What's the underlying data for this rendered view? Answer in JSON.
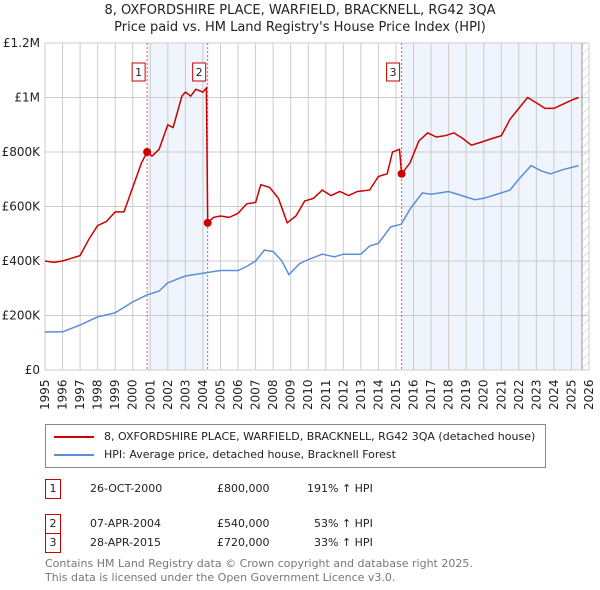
{
  "title": "8, OXFORDSHIRE PLACE, WARFIELD, BRACKNELL, RG42 3QA",
  "subtitle": "Price paid vs. HM Land Registry's House Price Index (HPI)",
  "chart_data": {
    "type": "line",
    "xlim": [
      1995,
      2026
    ],
    "ylim": [
      0,
      1200000
    ],
    "yticks": [
      {
        "v": 0,
        "label": "£0"
      },
      {
        "v": 200000,
        "label": "£200K"
      },
      {
        "v": 400000,
        "label": "£400K"
      },
      {
        "v": 600000,
        "label": "£600K"
      },
      {
        "v": 800000,
        "label": "£800K"
      },
      {
        "v": 1000000,
        "label": "£1M"
      },
      {
        "v": 1200000,
        "label": "£1.2M"
      }
    ],
    "xticks": [
      "1995",
      "1996",
      "1997",
      "1998",
      "1999",
      "2000",
      "2001",
      "2002",
      "2003",
      "2004",
      "2005",
      "2006",
      "2007",
      "2008",
      "2009",
      "2010",
      "2011",
      "2012",
      "2013",
      "2014",
      "2015",
      "2016",
      "2017",
      "2018",
      "2019",
      "2020",
      "2021",
      "2022",
      "2023",
      "2024",
      "2025",
      "2026"
    ],
    "grid": true,
    "shaded_ranges": [
      [
        2000.82,
        2004.27
      ],
      [
        2015.32,
        2025.6
      ]
    ],
    "future_hatch_from": 2025.6,
    "series": [
      {
        "name": "8, OXFORDSHIRE PLACE, WARFIELD, BRACKNELL, RG42 3QA (detached house)",
        "color": "#cc0000",
        "x": [
          1995,
          1995.5,
          1996,
          1996.5,
          1997,
          1997.5,
          1998,
          1998.5,
          1999,
          1999.5,
          2000,
          2000.5,
          2000.82,
          2001.1,
          2001.5,
          2002,
          2002.3,
          2002.8,
          2003,
          2003.3,
          2003.6,
          2004.0,
          2004.2,
          2004.27,
          2004.6,
          2005,
          2005.5,
          2006,
          2006.5,
          2007,
          2007.3,
          2007.8,
          2008.3,
          2008.8,
          2009.3,
          2009.8,
          2010.3,
          2010.8,
          2011.3,
          2011.8,
          2012.3,
          2012.8,
          2013.5,
          2014,
          2014.5,
          2014.8,
          2015.2,
          2015.32,
          2015.8,
          2016.3,
          2016.8,
          2017.3,
          2017.8,
          2018.3,
          2018.8,
          2019.3,
          2019.8,
          2020.5,
          2021,
          2021.5,
          2022,
          2022.5,
          2023,
          2023.5,
          2024,
          2024.5,
          2025,
          2025.4
        ],
        "y": [
          400000,
          395000,
          400000,
          410000,
          420000,
          480000,
          530000,
          545000,
          580000,
          580000,
          670000,
          760000,
          800000,
          785000,
          810000,
          900000,
          890000,
          1005000,
          1020000,
          1005000,
          1030000,
          1020000,
          1035000,
          540000,
          560000,
          565000,
          560000,
          575000,
          610000,
          615000,
          680000,
          670000,
          630000,
          540000,
          565000,
          620000,
          630000,
          660000,
          640000,
          655000,
          640000,
          655000,
          660000,
          710000,
          720000,
          800000,
          810000,
          720000,
          760000,
          840000,
          870000,
          855000,
          860000,
          870000,
          850000,
          825000,
          835000,
          850000,
          860000,
          920000,
          960000,
          1000000,
          980000,
          960000,
          960000,
          975000,
          990000,
          1000000
        ]
      },
      {
        "name": "HPI: Average price, detached house, Bracknell Forest",
        "color": "#5b8fd6",
        "x": [
          1995,
          1996,
          1997,
          1998,
          1999,
          2000,
          2000.8,
          2001.5,
          2002,
          2003,
          2004,
          2004.5,
          2005,
          2006,
          2006.5,
          2007,
          2007.5,
          2008,
          2008.5,
          2008.9,
          2009.5,
          2010,
          2010.8,
          2011.5,
          2012,
          2013,
          2013.5,
          2014,
          2014.7,
          2015.3,
          2015.8,
          2016.5,
          2017,
          2018,
          2019,
          2019.5,
          2020,
          2021,
          2021.5,
          2022,
          2022.7,
          2023.3,
          2023.8,
          2024.5,
          2025.4
        ],
        "y": [
          140000,
          140000,
          165000,
          195000,
          210000,
          250000,
          275000,
          290000,
          320000,
          345000,
          355000,
          360000,
          365000,
          365000,
          380000,
          400000,
          440000,
          435000,
          400000,
          350000,
          390000,
          405000,
          425000,
          415000,
          425000,
          425000,
          455000,
          465000,
          525000,
          535000,
          590000,
          650000,
          645000,
          655000,
          635000,
          625000,
          630000,
          650000,
          660000,
          700000,
          750000,
          730000,
          720000,
          735000,
          750000
        ]
      }
    ],
    "sales": [
      {
        "n": "1",
        "x": 2000.82,
        "y": 800000
      },
      {
        "n": "2",
        "x": 2004.27,
        "y": 540000
      },
      {
        "n": "3",
        "x": 2015.32,
        "y": 720000
      }
    ]
  },
  "legend": {
    "property": "8, OXFORDSHIRE PLACE, WARFIELD, BRACKNELL, RG42 3QA (detached house)",
    "hpi": "HPI: Average price, detached house, Bracknell Forest"
  },
  "transactions": [
    {
      "n": "1",
      "date": "26-OCT-2000",
      "price": "£800,000",
      "hpi": "191% ↑ HPI"
    },
    {
      "n": "2",
      "date": "07-APR-2004",
      "price": "£540,000",
      "hpi": "53% ↑ HPI"
    },
    {
      "n": "3",
      "date": "28-APR-2015",
      "price": "£720,000",
      "hpi": "33% ↑ HPI"
    }
  ],
  "footer": {
    "line1": "Contains HM Land Registry data © Crown copyright and database right 2025.",
    "line2": "This data is licensed under the Open Government Licence v3.0."
  }
}
